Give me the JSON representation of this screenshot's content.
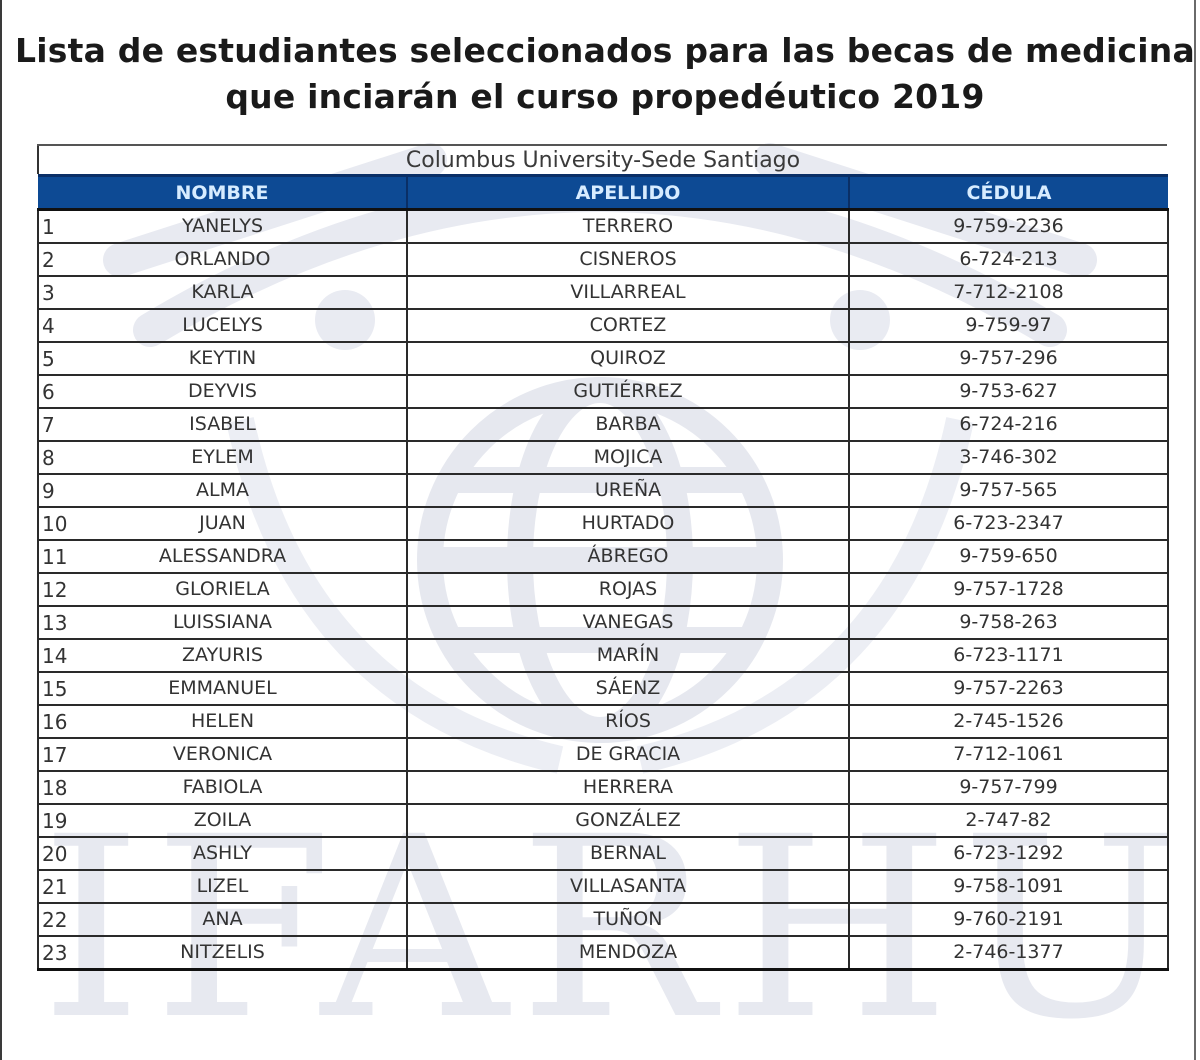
{
  "document": {
    "title_line1": "Lista de estudiantes seleccionados para las becas de medicina",
    "title_line2": "que inciarán el curso propedéutico 2019",
    "table_subtitle": "Columbus University-Sede Santiago",
    "watermark_text": "IFARHU",
    "colors": {
      "header_bg": "#0d4a94",
      "header_text": "#d7ecff",
      "border": "#2a2a2a",
      "watermark": "#e6e8ef"
    }
  },
  "table": {
    "headers": [
      "NOMBRE",
      "APELLIDO",
      "CÉDULA"
    ],
    "rows": [
      {
        "n": "1",
        "nombre": "YANELYS",
        "apellido": "TERRERO",
        "cedula": "9-759-2236"
      },
      {
        "n": "2",
        "nombre": "ORLANDO",
        "apellido": "CISNEROS",
        "cedula": "6-724-213"
      },
      {
        "n": "3",
        "nombre": "KARLA",
        "apellido": "VILLARREAL",
        "cedula": "7-712-2108"
      },
      {
        "n": "4",
        "nombre": "LUCELYS",
        "apellido": "CORTEZ",
        "cedula": "9-759-97"
      },
      {
        "n": "5",
        "nombre": "KEYTIN",
        "apellido": "QUIROZ",
        "cedula": "9-757-296"
      },
      {
        "n": "6",
        "nombre": "DEYVIS",
        "apellido": "GUTIÉRREZ",
        "cedula": "9-753-627"
      },
      {
        "n": "7",
        "nombre": "ISABEL",
        "apellido": "BARBA",
        "cedula": "6-724-216"
      },
      {
        "n": "8",
        "nombre": "EYLEM",
        "apellido": "MOJICA",
        "cedula": "3-746-302"
      },
      {
        "n": "9",
        "nombre": "ALMA",
        "apellido": "UREÑA",
        "cedula": "9-757-565"
      },
      {
        "n": "10",
        "nombre": "JUAN",
        "apellido": "HURTADO",
        "cedula": "6-723-2347"
      },
      {
        "n": "11",
        "nombre": "ALESSANDRA",
        "apellido": "ÁBREGO",
        "cedula": "9-759-650"
      },
      {
        "n": "12",
        "nombre": "GLORIELA",
        "apellido": "ROJAS",
        "cedula": "9-757-1728"
      },
      {
        "n": "13",
        "nombre": "LUISSIANA",
        "apellido": "VANEGAS",
        "cedula": "9-758-263"
      },
      {
        "n": "14",
        "nombre": "ZAYURIS",
        "apellido": "MARÍN",
        "cedula": "6-723-1171"
      },
      {
        "n": "15",
        "nombre": "EMMANUEL",
        "apellido": "SÁENZ",
        "cedula": "9-757-2263"
      },
      {
        "n": "16",
        "nombre": "HELEN",
        "apellido": "RÍOS",
        "cedula": "2-745-1526"
      },
      {
        "n": "17",
        "nombre": "VERONICA",
        "apellido": "DE GRACIA",
        "cedula": "7-712-1061"
      },
      {
        "n": "18",
        "nombre": "FABIOLA",
        "apellido": "HERRERA",
        "cedula": "9-757-799"
      },
      {
        "n": "19",
        "nombre": "ZOILA",
        "apellido": "GONZÁLEZ",
        "cedula": "2-747-82"
      },
      {
        "n": "20",
        "nombre": "ASHLY",
        "apellido": "BERNAL",
        "cedula": "6-723-1292"
      },
      {
        "n": "21",
        "nombre": "LIZEL",
        "apellido": "VILLASANTA",
        "cedula": "9-758-1091"
      },
      {
        "n": "22",
        "nombre": "ANA",
        "apellido": "TUÑON",
        "cedula": "9-760-2191"
      },
      {
        "n": "23",
        "nombre": "NITZELIS",
        "apellido": "MENDOZA",
        "cedula": "2-746-1377"
      }
    ]
  }
}
